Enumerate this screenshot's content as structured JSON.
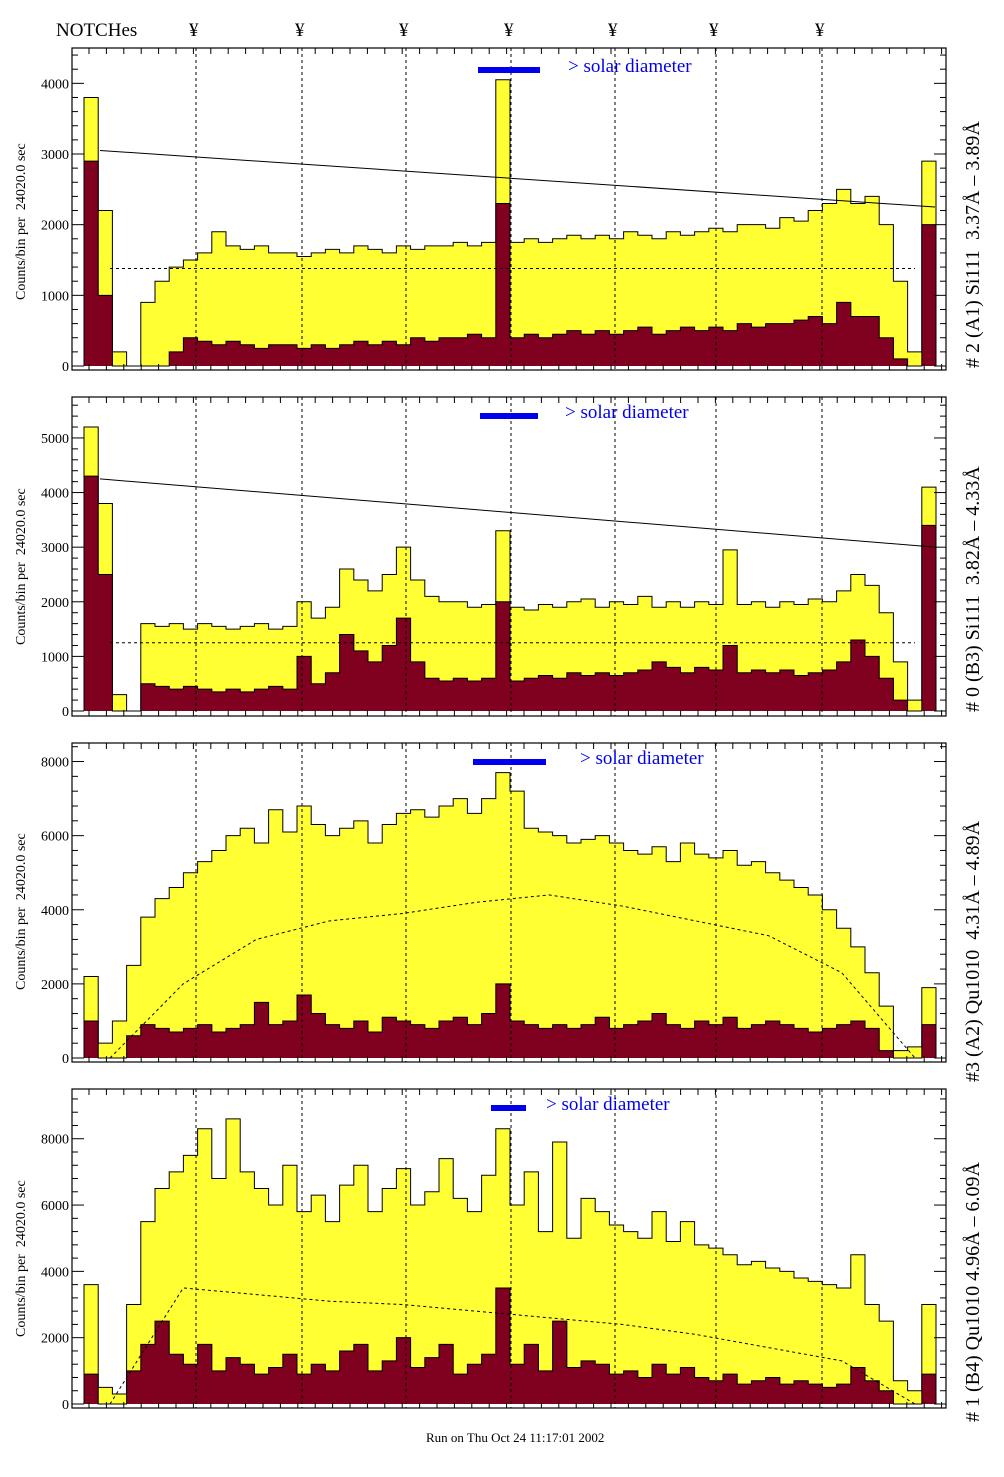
{
  "header": {
    "label": "NOTCHes",
    "notch_symbol": "¥",
    "notch_count": 7
  },
  "footer": "Run on Thu Oct 24 11:17:01 2002",
  "colors": {
    "fill": "#ffff33",
    "dark": "#800020",
    "solar_bar": "#0000ee",
    "outline": "#000000"
  },
  "chart_data": [
    {
      "type": "bar",
      "title": "# 2 (A1) Si111  3.37Å – 3.89Å",
      "ylabel": "Counts/bin per  24020.0 sec",
      "legend": "> solar diameter",
      "ylim": [
        0,
        4500
      ],
      "yticks": [
        0,
        1000,
        2000,
        3000,
        4000
      ],
      "fit_line": [
        3050,
        2250
      ],
      "mean": [
        1380,
        1380,
        1380,
        1380,
        1380,
        1380
      ],
      "series": [
        {
          "name": "total",
          "values": [
            3800,
            2200,
            200,
            0,
            900,
            1200,
            1400,
            1500,
            1600,
            1900,
            1700,
            1650,
            1700,
            1600,
            1600,
            1550,
            1600,
            1650,
            1600,
            1700,
            1650,
            1600,
            1700,
            1650,
            1700,
            1700,
            1750,
            1700,
            1750,
            4050,
            1750,
            1800,
            1750,
            1800,
            1850,
            1800,
            1850,
            1800,
            1900,
            1850,
            1800,
            1900,
            1850,
            1900,
            1950,
            1900,
            2000,
            2000,
            1950,
            2100,
            2050,
            2200,
            2300,
            2500,
            2300,
            2400,
            2000,
            1200,
            200,
            2900
          ]
        },
        {
          "name": "dark",
          "values": [
            2900,
            1000,
            0,
            0,
            0,
            0,
            200,
            400,
            350,
            300,
            350,
            300,
            250,
            300,
            300,
            250,
            300,
            250,
            300,
            350,
            300,
            350,
            300,
            400,
            350,
            400,
            400,
            450,
            400,
            2300,
            400,
            450,
            400,
            450,
            500,
            450,
            500,
            450,
            500,
            550,
            450,
            500,
            550,
            500,
            550,
            500,
            600,
            550,
            600,
            600,
            650,
            700,
            600,
            900,
            700,
            700,
            400,
            100,
            0,
            2000
          ]
        }
      ]
    },
    {
      "type": "bar",
      "title": "# 0 (B3) Si111  3.82Å – 4.33Å",
      "ylabel": "Counts/bin per  24020.0 sec",
      "legend": "> solar diameter",
      "ylim": [
        0,
        5750
      ],
      "yticks": [
        0,
        1000,
        2000,
        3000,
        4000,
        5000
      ],
      "fit_line": [
        4250,
        3000
      ],
      "mean": [
        1250,
        1250,
        1250,
        1250,
        1250,
        1250
      ],
      "series": [
        {
          "name": "total",
          "values": [
            5200,
            3800,
            300,
            0,
            1600,
            1550,
            1600,
            1500,
            1600,
            1550,
            1500,
            1550,
            1600,
            1500,
            1550,
            2000,
            1700,
            1900,
            2600,
            2400,
            2200,
            2500,
            3000,
            2400,
            2100,
            2000,
            2000,
            1900,
            1950,
            3300,
            1900,
            1850,
            1950,
            1900,
            2000,
            2050,
            1900,
            2000,
            1950,
            2100,
            1900,
            2000,
            1900,
            2000,
            1950,
            2950,
            1950,
            2000,
            1900,
            2000,
            1950,
            2050,
            2000,
            2200,
            2500,
            2300,
            1800,
            900,
            200,
            4100
          ]
        },
        {
          "name": "dark",
          "values": [
            4300,
            2500,
            0,
            0,
            500,
            450,
            400,
            450,
            400,
            350,
            400,
            350,
            400,
            450,
            400,
            1000,
            500,
            700,
            1400,
            1100,
            900,
            1200,
            1700,
            900,
            600,
            550,
            600,
            550,
            600,
            2000,
            550,
            600,
            650,
            600,
            700,
            650,
            700,
            650,
            700,
            750,
            900,
            800,
            700,
            800,
            750,
            1200,
            700,
            750,
            700,
            750,
            650,
            700,
            750,
            900,
            1300,
            1000,
            600,
            200,
            0,
            3400
          ]
        }
      ]
    },
    {
      "type": "bar",
      "title": "#3 (A2) Qu1010  4.31Å – 4.89Å",
      "ylabel": "Counts/bin per  24020.0 sec",
      "legend": "> solar diameter",
      "ylim": [
        0,
        8500
      ],
      "yticks": [
        0,
        2000,
        4000,
        6000,
        8000
      ],
      "fit_line": null,
      "mean": [
        0,
        2000,
        3200,
        3700,
        3900,
        4200,
        4400,
        4100,
        3700,
        3300,
        2300,
        0
      ],
      "series": [
        {
          "name": "total",
          "values": [
            2200,
            400,
            1000,
            2500,
            3800,
            4300,
            4600,
            5000,
            5300,
            5600,
            6000,
            6200,
            5800,
            6700,
            6100,
            6800,
            6300,
            6000,
            6200,
            6400,
            5800,
            6300,
            6600,
            6700,
            6500,
            6800,
            7000,
            6600,
            7000,
            7700,
            7200,
            6200,
            6100,
            6000,
            5800,
            5900,
            6000,
            5800,
            5600,
            5500,
            5700,
            5300,
            5800,
            5500,
            5400,
            5600,
            5200,
            5300,
            5000,
            4800,
            4600,
            4400,
            4000,
            3500,
            3000,
            2300,
            1400,
            200,
            300,
            1900
          ]
        },
        {
          "name": "dark",
          "values": [
            1000,
            0,
            0,
            600,
            900,
            800,
            700,
            800,
            900,
            700,
            800,
            900,
            1500,
            900,
            1000,
            1700,
            1200,
            900,
            800,
            1000,
            700,
            1100,
            1000,
            900,
            800,
            1000,
            1100,
            900,
            1200,
            2000,
            1000,
            900,
            800,
            900,
            800,
            900,
            1100,
            800,
            900,
            1000,
            1200,
            900,
            800,
            1000,
            900,
            1100,
            800,
            900,
            1000,
            900,
            800,
            700,
            800,
            900,
            1000,
            800,
            200,
            0,
            0,
            900
          ]
        }
      ]
    },
    {
      "type": "bar",
      "title": "# 1 (B4) Qu1010 4.96Å – 6.09Å",
      "ylabel": "Counts/bin per  24020.0 sec",
      "legend": "> solar diameter",
      "ylim": [
        0,
        9500
      ],
      "yticks": [
        0,
        2000,
        4000,
        6000,
        8000
      ],
      "fit_line": null,
      "mean": [
        0,
        3500,
        3300,
        3100,
        3000,
        2800,
        2600,
        2400,
        2100,
        1700,
        1300,
        0
      ],
      "series": [
        {
          "name": "total",
          "values": [
            3600,
            500,
            300,
            3000,
            5500,
            6500,
            7000,
            7500,
            8300,
            6800,
            8600,
            7000,
            6500,
            6000,
            7200,
            5800,
            6300,
            5500,
            6600,
            7200,
            5800,
            6500,
            7100,
            6000,
            6400,
            7400,
            6200,
            5800,
            6900,
            8300,
            6000,
            7000,
            5200,
            7900,
            5000,
            6200,
            5800,
            5400,
            5200,
            5000,
            5800,
            4900,
            5500,
            4800,
            4700,
            4500,
            4200,
            4300,
            4100,
            4000,
            3800,
            3700,
            3600,
            3500,
            4500,
            3000,
            2500,
            700,
            400,
            3000
          ]
        },
        {
          "name": "dark",
          "values": [
            900,
            0,
            0,
            1000,
            1800,
            2500,
            1500,
            1200,
            1800,
            1000,
            1400,
            1200,
            900,
            1100,
            1500,
            900,
            1200,
            1000,
            1600,
            1800,
            1000,
            1300,
            2000,
            1100,
            1400,
            1800,
            900,
            1200,
            1500,
            3500,
            1200,
            1800,
            1000,
            2500,
            1100,
            1300,
            1200,
            900,
            1000,
            800,
            1200,
            900,
            1100,
            800,
            700,
            900,
            600,
            700,
            800,
            600,
            700,
            600,
            500,
            600,
            1100,
            700,
            400,
            0,
            0,
            900
          ]
        }
      ]
    }
  ]
}
